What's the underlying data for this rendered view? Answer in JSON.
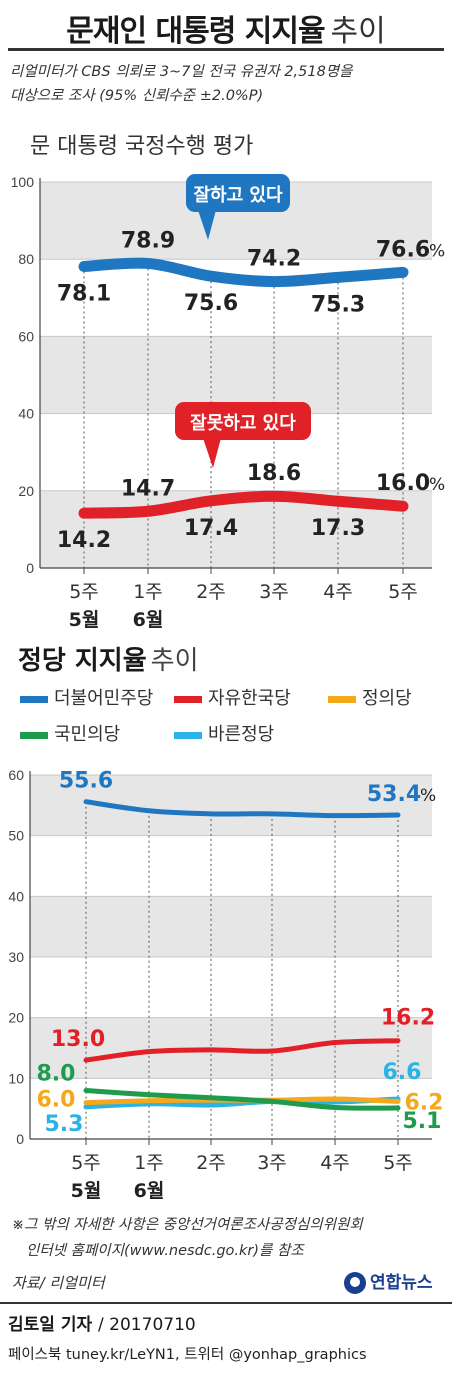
{
  "header": {
    "title_main": "문재인 대통령 지지율",
    "title_sub": "추이"
  },
  "survey_note_lines": [
    "리얼미터가 CBS 의뢰로 3~7일 전국 유권자 2,518명을",
    "대상으로 조사 (95% 신뢰수준 ±2.0%P)"
  ],
  "section1_title": "문 대통령 국정수행 평가",
  "section2_title_bold": "정당 지지율",
  "section2_title_light": "추이",
  "footnote_lines": [
    "※그 밖의 자세한 사항은 중앙선거여론조사공정심의위원회",
    "인터넷 홈페이지(www.nesdc.go.kr)를 참조"
  ],
  "source": "자료/ 리얼미터",
  "logo_text": "연합뉴스",
  "credit_name": "김토일 기자",
  "credit_date": "/ 20170710",
  "social": "페이스북 tuney.kr/LeYN1, 트위터 @yonhap_graphics",
  "chart_data": [
    {
      "type": "line",
      "title": "문 대통령 국정수행 평가",
      "categories": [
        "5주",
        "1주",
        "2주",
        "3주",
        "4주",
        "5주"
      ],
      "category_groups": [
        "5월",
        "6월",
        "",
        "",
        "",
        ""
      ],
      "ylim": [
        0,
        100
      ],
      "yticks": [
        0,
        20,
        40,
        60,
        80,
        100
      ],
      "grid": true,
      "unit": "%",
      "series": [
        {
          "name": "잘하고 있다",
          "values": [
            78.1,
            78.9,
            75.6,
            74.2,
            75.3,
            76.6
          ],
          "labels": [
            "78.1",
            "78.9",
            "75.6",
            "74.2",
            "75.3",
            "76.6"
          ],
          "color": "#1f77c2"
        },
        {
          "name": "잘못하고 있다",
          "values": [
            14.2,
            14.7,
            17.4,
            18.6,
            17.3,
            16.0
          ],
          "labels": [
            "14.2",
            "14.7",
            "17.4",
            "18.6",
            "17.3",
            "16.0"
          ],
          "color": "#e02127"
        }
      ]
    },
    {
      "type": "line",
      "title": "정당 지지율 추이",
      "categories": [
        "5주",
        "1주",
        "2주",
        "3주",
        "4주",
        "5주"
      ],
      "category_groups": [
        "5월",
        "6월",
        "",
        "",
        "",
        ""
      ],
      "ylim": [
        0,
        60
      ],
      "yticks": [
        0,
        10,
        20,
        30,
        40,
        50,
        60
      ],
      "grid": true,
      "legend": "top",
      "unit": "%",
      "series": [
        {
          "name": "더불어민주당",
          "values": [
            55.6,
            54.1,
            53.6,
            53.6,
            53.3,
            53.4
          ],
          "color": "#1f77c2"
        },
        {
          "name": "자유한국당",
          "values": [
            13.0,
            14.4,
            14.7,
            14.5,
            15.9,
            16.2
          ],
          "color": "#e02127"
        },
        {
          "name": "정의당",
          "values": [
            6.0,
            6.3,
            6.4,
            6.4,
            6.6,
            6.2
          ],
          "color": "#f5a81c"
        },
        {
          "name": "국민의당",
          "values": [
            8.0,
            7.3,
            6.8,
            6.2,
            5.2,
            5.1
          ],
          "color": "#1f9b4e"
        },
        {
          "name": "바른정당",
          "values": [
            5.3,
            5.8,
            5.6,
            6.2,
            6.1,
            6.6
          ],
          "color": "#29b3e6"
        }
      ],
      "value_labels": [
        {
          "series": 0,
          "index": 0,
          "text": "55.6"
        },
        {
          "series": 0,
          "index": 5,
          "text": "53.4"
        },
        {
          "series": 1,
          "index": 0,
          "text": "13.0"
        },
        {
          "series": 1,
          "index": 5,
          "text": "16.2"
        },
        {
          "series": 2,
          "index": 0,
          "text": "6.0"
        },
        {
          "series": 2,
          "index": 5,
          "text": "6.2"
        },
        {
          "series": 3,
          "index": 0,
          "text": "8.0"
        },
        {
          "series": 3,
          "index": 5,
          "text": "5.1"
        },
        {
          "series": 4,
          "index": 0,
          "text": "5.3"
        },
        {
          "series": 4,
          "index": 5,
          "text": "6.6"
        }
      ]
    }
  ]
}
